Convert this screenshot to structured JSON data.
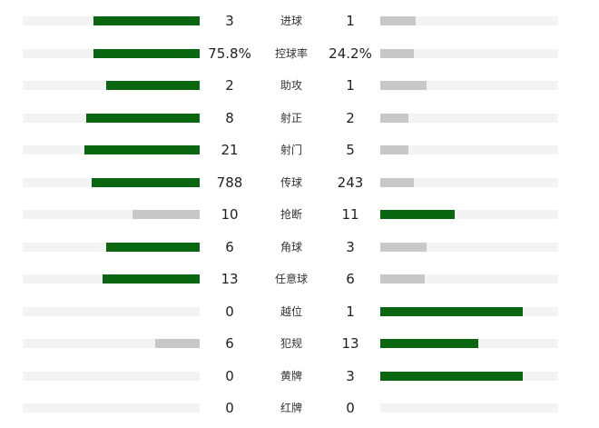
{
  "colors": {
    "leader": "#0b6611",
    "trailer": "#c8c8c8",
    "track": "#f3f3f3"
  },
  "stats": [
    {
      "label": "进球",
      "home": "3",
      "away": "1",
      "home_share": 0.6,
      "away_share": 0.2,
      "home_leads": true,
      "away_leads": false
    },
    {
      "label": "控球率",
      "home": "75.8%",
      "away": "24.2%",
      "home_share": 0.6,
      "away_share": 0.19,
      "home_leads": true,
      "away_leads": false
    },
    {
      "label": "助攻",
      "home": "2",
      "away": "1",
      "home_share": 0.53,
      "away_share": 0.26,
      "home_leads": true,
      "away_leads": false
    },
    {
      "label": "射正",
      "home": "8",
      "away": "2",
      "home_share": 0.64,
      "away_share": 0.16,
      "home_leads": true,
      "away_leads": false
    },
    {
      "label": "射门",
      "home": "21",
      "away": "5",
      "home_share": 0.65,
      "away_share": 0.16,
      "home_leads": true,
      "away_leads": false
    },
    {
      "label": "传球",
      "home": "788",
      "away": "243",
      "home_share": 0.61,
      "away_share": 0.19,
      "home_leads": true,
      "away_leads": false
    },
    {
      "label": "抢断",
      "home": "10",
      "away": "11",
      "home_share": 0.38,
      "away_share": 0.42,
      "home_leads": false,
      "away_leads": true
    },
    {
      "label": "角球",
      "home": "6",
      "away": "3",
      "home_share": 0.53,
      "away_share": 0.26,
      "home_leads": true,
      "away_leads": false
    },
    {
      "label": "任意球",
      "home": "13",
      "away": "6",
      "home_share": 0.55,
      "away_share": 0.25,
      "home_leads": true,
      "away_leads": false
    },
    {
      "label": "越位",
      "home": "0",
      "away": "1",
      "home_share": 0.0,
      "away_share": 0.8,
      "home_leads": false,
      "away_leads": true
    },
    {
      "label": "犯规",
      "home": "6",
      "away": "13",
      "home_share": 0.25,
      "away_share": 0.55,
      "home_leads": false,
      "away_leads": true
    },
    {
      "label": "黄牌",
      "home": "0",
      "away": "3",
      "home_share": 0.0,
      "away_share": 0.8,
      "home_leads": false,
      "away_leads": true
    },
    {
      "label": "红牌",
      "home": "0",
      "away": "0",
      "home_share": 0.0,
      "away_share": 0.0,
      "home_leads": false,
      "away_leads": false
    }
  ]
}
